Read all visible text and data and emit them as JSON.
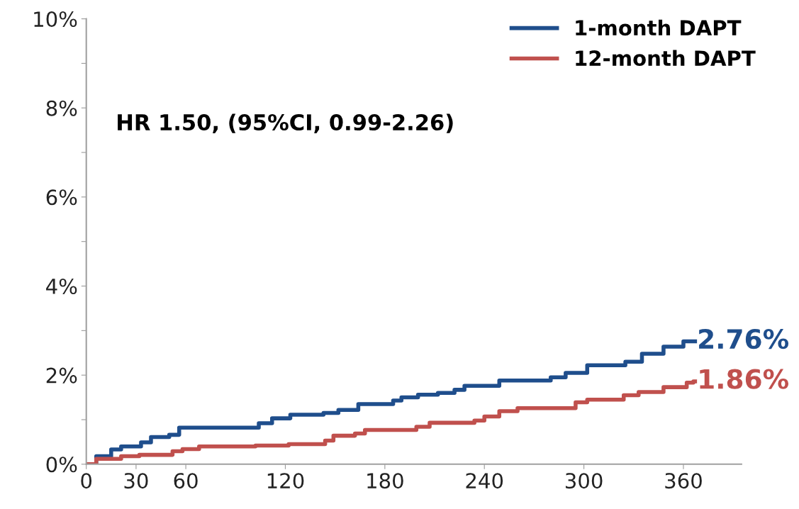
{
  "chart_data": {
    "type": "step",
    "xlim": [
      0,
      395
    ],
    "ylim": [
      0,
      10
    ],
    "xticks": [
      0,
      30,
      60,
      120,
      180,
      240,
      300,
      360
    ],
    "yticks": [
      {
        "value": 0,
        "label": "0%"
      },
      {
        "value": 1,
        "label": null
      },
      {
        "value": 2,
        "label": "2%"
      },
      {
        "value": 3,
        "label": null
      },
      {
        "value": 4,
        "label": "4%"
      },
      {
        "value": 5,
        "label": null
      },
      {
        "value": 6,
        "label": "6%"
      },
      {
        "value": 7,
        "label": null
      },
      {
        "value": 8,
        "label": "8%"
      },
      {
        "value": 9,
        "label": null
      },
      {
        "value": 10,
        "label": "10%"
      }
    ],
    "grid": false,
    "legend": "top right",
    "annotations": [
      "HR 1.50, (95%CI, 0.99-2.26)"
    ],
    "series": [
      {
        "name": "1-month DAPT",
        "color": "#1f4e8c",
        "x": [
          0,
          6,
          15,
          21,
          33,
          39,
          50,
          56,
          104,
          112,
          123,
          143,
          152,
          164,
          185,
          190,
          200,
          212,
          222,
          228,
          249,
          280,
          289,
          302,
          325,
          335,
          348,
          360,
          367
        ],
        "values": [
          0,
          0.18,
          0.33,
          0.4,
          0.49,
          0.61,
          0.66,
          0.82,
          0.92,
          1.03,
          1.11,
          1.15,
          1.22,
          1.35,
          1.43,
          1.5,
          1.56,
          1.6,
          1.67,
          1.76,
          1.88,
          1.95,
          2.05,
          2.22,
          2.3,
          2.48,
          2.64,
          2.76,
          2.76
        ],
        "value_labels": [
          null,
          null,
          null,
          null,
          null,
          null,
          null,
          null,
          null,
          null,
          null,
          null,
          null,
          null,
          null,
          null,
          null,
          null,
          null,
          null,
          null,
          null,
          null,
          null,
          null,
          null,
          null,
          null,
          "2.76%"
        ]
      },
      {
        "name": "12-month DAPT",
        "color": "#c0504d",
        "x": [
          0,
          6,
          21,
          32,
          52,
          58,
          68,
          102,
          122,
          144,
          149,
          162,
          168,
          199,
          207,
          234,
          240,
          249,
          260,
          295,
          302,
          324,
          333,
          348,
          362,
          366,
          367
        ],
        "values": [
          0,
          0.12,
          0.18,
          0.21,
          0.29,
          0.34,
          0.4,
          0.42,
          0.45,
          0.53,
          0.64,
          0.69,
          0.77,
          0.84,
          0.93,
          0.98,
          1.07,
          1.19,
          1.26,
          1.39,
          1.45,
          1.55,
          1.62,
          1.73,
          1.83,
          1.86,
          1.86
        ],
        "value_labels": [
          null,
          null,
          null,
          null,
          null,
          null,
          null,
          null,
          null,
          null,
          null,
          null,
          null,
          null,
          null,
          null,
          null,
          null,
          null,
          null,
          null,
          null,
          null,
          null,
          null,
          null,
          "1.86%"
        ]
      }
    ]
  }
}
